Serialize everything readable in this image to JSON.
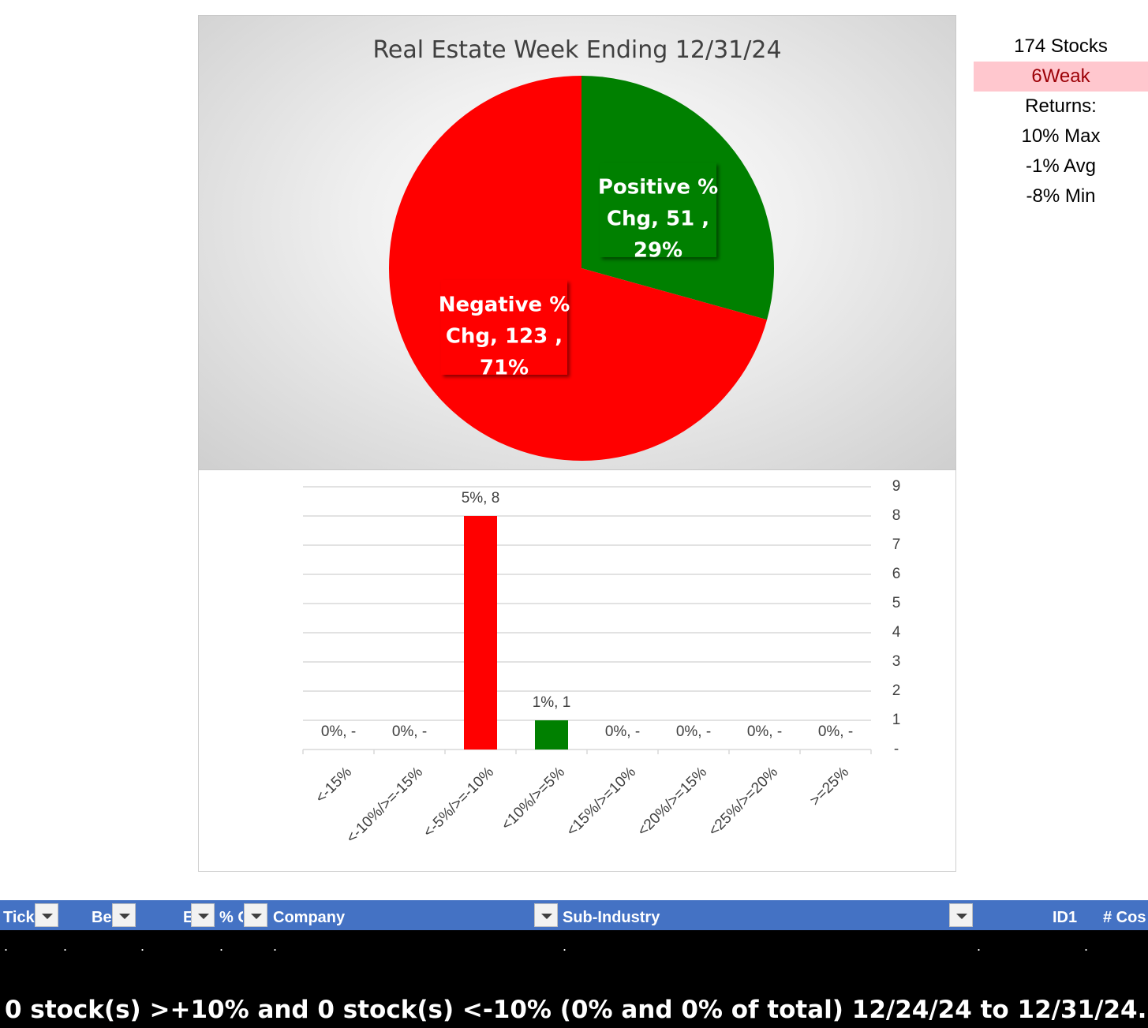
{
  "chart_data": [
    {
      "type": "pie",
      "title": "Real Estate Week Ending 12/31/24",
      "slices": [
        {
          "name": "Positive % Chg",
          "value": 51,
          "percent": "29%",
          "color": "#008000"
        },
        {
          "name": "Negative % Chg",
          "value": 123,
          "percent": "71%",
          "color": "#ff0000"
        }
      ]
    },
    {
      "type": "bar",
      "categories": [
        "<-15%",
        "<-10%/>=-15%",
        "<-5%/>=-10%",
        "<10%/>=5%",
        "<15%/>=10%",
        "<20%/>=15%",
        "<25%/>=20%",
        ">=25%"
      ],
      "values": [
        0,
        0,
        8,
        1,
        0,
        0,
        0,
        0
      ],
      "data_labels": [
        "0%,  -",
        "0%,  -",
        "5%,  8",
        "1%,  1",
        "0%,  -",
        "0%,  -",
        "0%,  -",
        "0%,  -"
      ],
      "bar_colors": [
        "#ff0000",
        "#ff0000",
        "#ff0000",
        "#008000",
        "#008000",
        "#008000",
        "#008000",
        "#008000"
      ],
      "ylim": [
        0,
        9
      ],
      "yticks": [
        "-",
        "1",
        "2",
        "3",
        "4",
        "5",
        "6",
        "7",
        "8",
        "9"
      ],
      "y_axis_side": "right",
      "grid": true
    }
  ],
  "stats": {
    "count": "174 Stocks",
    "strength": "6Weak",
    "returns_label": "Returns:",
    "max": "10% Max",
    "avg": "-1% Avg",
    "min": "-8% Min"
  },
  "table": {
    "headers": [
      "Tick",
      "Be",
      "E",
      "% C",
      "Company",
      "Sub-Industry",
      "ID1",
      "# Cos"
    ],
    "row_dots": [
      ".",
      ".",
      ".",
      ".",
      ".",
      ".",
      ".",
      "."
    ]
  },
  "footer": "0 stock(s) >+10% and 0 stock(s) <-10% (0% and 0% of total) 12/24/24 to 12/31/24."
}
